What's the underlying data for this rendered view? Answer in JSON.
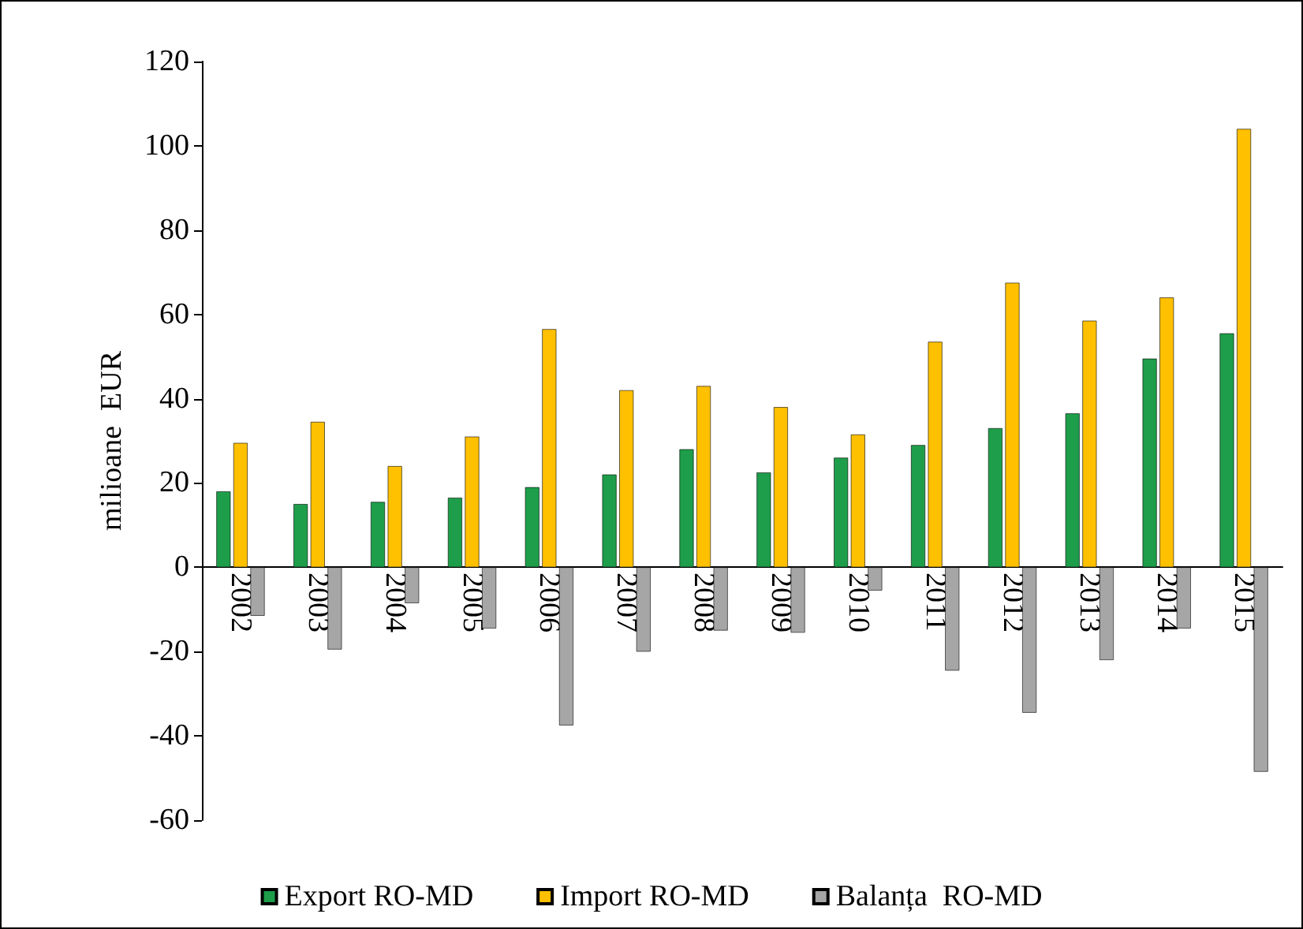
{
  "chart_data": {
    "type": "bar",
    "ylabel": "milioane  EUR",
    "categories": [
      "2002",
      "2003",
      "2004",
      "2005",
      "2006",
      "2007",
      "2008",
      "2009",
      "2010",
      "2011",
      "2012",
      "2013",
      "2014",
      "2015"
    ],
    "series": [
      {
        "name": "Export RO-MD",
        "color": "#1e9e4a",
        "values": [
          18,
          15,
          15.5,
          16.5,
          19,
          22,
          28,
          22.5,
          26,
          29,
          33,
          36.5,
          49.5,
          55.5
        ]
      },
      {
        "name": "Import RO-MD",
        "color": "#ffc000",
        "values": [
          29.5,
          34.5,
          24,
          31,
          56.5,
          42,
          43,
          38,
          31.5,
          53.5,
          67.5,
          58.5,
          64,
          104
        ]
      },
      {
        "name": "Balanța  RO-MD",
        "color": "#a6a6a6",
        "values": [
          -11.5,
          -19.5,
          -8.5,
          -14.5,
          -37.5,
          -20,
          -15,
          -15.5,
          -5.5,
          -24.5,
          -34.5,
          -22,
          -14.5,
          -48.5
        ]
      }
    ],
    "ylim": [
      -60,
      120
    ],
    "yticks": [
      -60,
      -40,
      -20,
      0,
      20,
      40,
      60,
      80,
      100,
      120
    ],
    "grid": false,
    "legend": "bottom"
  }
}
